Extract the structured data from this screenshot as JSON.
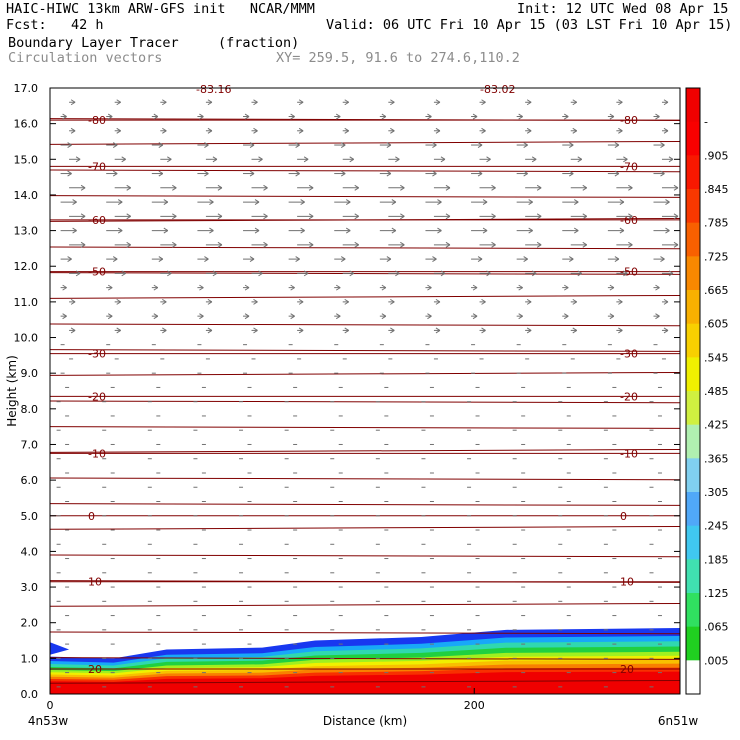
{
  "header": {
    "model_line": "HAIC-HIWC 13km ARW-GFS init   NCAR/MMM",
    "init_line": "Init: 12 UTC Wed 08 Apr 15",
    "fcst_line": "Fcst:   42 h",
    "valid_line": "Valid: 06 UTC Fri 10 Apr 15 (03 LST Fri 10 Apr 15)",
    "field_name": "Boundary Layer Tracer",
    "field_units": "(fraction)",
    "vector_name": "Circulation vectors",
    "xy_line": "XY= 259.5, 91.6 to 274.6,110.2"
  },
  "chart_data": {
    "type": "heatmap",
    "xlabel": "Distance (km)",
    "ylabel": "Height (km)",
    "xlim": [
      0,
      297
    ],
    "ylim": [
      0,
      17
    ],
    "y_ticks": [
      "0.0",
      "1.0",
      "2.0",
      "3.0",
      "4.0",
      "5.0",
      "6.0",
      "7.0",
      "8.0",
      "9.0",
      "10.0",
      "11.0",
      "12.0",
      "13.0",
      "14.0",
      "15.0",
      "16.0",
      "17.0"
    ],
    "x_ticks": [
      {
        "value": 0,
        "label": "0"
      },
      {
        "value": 200,
        "label": "200"
      }
    ],
    "x_start_label": "4n53w",
    "x_end_label": "6n51w",
    "colorbar": {
      "labels": [
        ".005",
        ".065",
        ".125",
        ".185",
        ".245",
        ".305",
        ".365",
        ".425",
        ".485",
        ".545",
        ".605",
        ".665",
        ".725",
        ".785",
        ".845",
        ".905",
        "-"
      ],
      "colors": [
        "#ffffff",
        "#20d020",
        "#30e060",
        "#40e0b0",
        "#40c8f0",
        "#50a8f8",
        "#80d0f0",
        "#b0f0b0",
        "#d0f040",
        "#f0f000",
        "#f8d000",
        "#f8b000",
        "#f88800",
        "#f86000",
        "#f83800",
        "#f81800",
        "#f80000",
        "#f00000"
      ]
    },
    "temperature_contours": [
      {
        "label": "20",
        "height": 0.7
      },
      {
        "label": "10",
        "height": 3.15
      },
      {
        "label": "0",
        "height": 5.0
      },
      {
        "label": "-10",
        "height": 6.75
      },
      {
        "label": "-20",
        "height": 8.35
      },
      {
        "label": "-30",
        "height": 9.55
      },
      {
        "label": "-50",
        "height": 11.85
      },
      {
        "label": "-60",
        "height": 13.3
      },
      {
        "label": "-70",
        "height": 14.8
      },
      {
        "label": "-80",
        "height": 16.1
      }
    ],
    "top_labels": [
      "-83.16",
      "-83.02"
    ],
    "tracer_top_km": [
      {
        "x": 0,
        "y": 1.05
      },
      {
        "x": 30,
        "y": 1.0
      },
      {
        "x": 55,
        "y": 1.25
      },
      {
        "x": 100,
        "y": 1.3
      },
      {
        "x": 125,
        "y": 1.5
      },
      {
        "x": 175,
        "y": 1.6
      },
      {
        "x": 215,
        "y": 1.8
      },
      {
        "x": 297,
        "y": 1.85
      }
    ]
  }
}
